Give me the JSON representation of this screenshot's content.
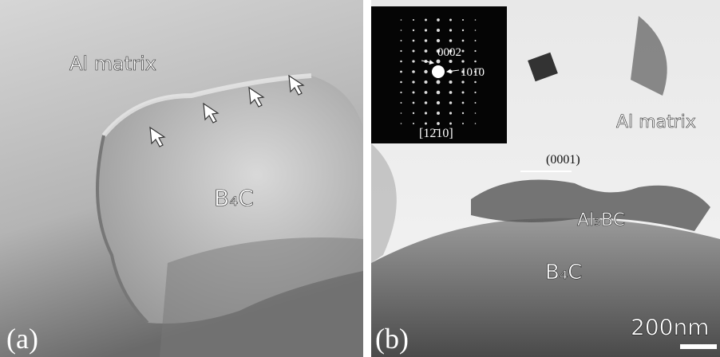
{
  "panel_a": {
    "label": "(a)",
    "matrix_label": "Al matrix",
    "particle_label": "B₄C"
  },
  "panel_b": {
    "label": "(b)",
    "matrix_label": "Al matrix",
    "plane_label": "(0001)",
    "interface_label": "Al₃BC",
    "particle_label": "B₄C",
    "scale_bar": "200nm",
    "inset": {
      "spot_1": "0002",
      "spot_2": "101̄0",
      "zone_axis": "[12̄10]"
    }
  }
}
